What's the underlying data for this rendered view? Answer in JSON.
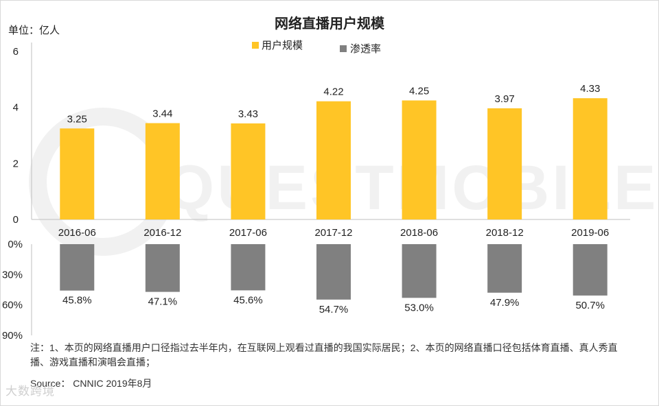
{
  "header": {
    "title": "网络直播用户规模",
    "unit": "单位：亿人"
  },
  "legend": {
    "users_label": "用户规模",
    "rate_label": "渗透率"
  },
  "footer": {
    "note": "注：1、本页的网络直播用户口径指过去半年内，在互联网上观看过直播的我国实际居民；2、本页的网络直播口径包括体育直播、真人秀直播、游戏直播和演唱会直播；",
    "source": "Source： CNNIC 2019年8月"
  },
  "watermark": {
    "text": "QUESTMOBILE",
    "bottom_logo": "大数跨境"
  },
  "colors": {
    "bar_users": "#FFC526",
    "bar_rate": "#808080",
    "axis": "#bfbfbf",
    "watermark": "#f0f0f0"
  },
  "chart_data": [
    {
      "type": "bar",
      "title": "网络直播用户规模",
      "ylabel": "单位：亿人",
      "categories": [
        "2016-06",
        "2016-12",
        "2017-06",
        "2017-12",
        "2018-06",
        "2018-12",
        "2019-06"
      ],
      "series": [
        {
          "name": "用户规模",
          "values": [
            3.25,
            3.44,
            3.43,
            4.22,
            4.25,
            3.97,
            4.33
          ]
        }
      ],
      "value_labels": [
        "3.25",
        "3.44",
        "3.43",
        "4.22",
        "4.25",
        "3.97",
        "4.33"
      ],
      "yticks": [
        "0",
        "2",
        "4",
        "6"
      ],
      "ylim": [
        0,
        6
      ],
      "grid": false,
      "legend": "top-center"
    },
    {
      "type": "bar",
      "categories": [
        "2016-06",
        "2016-12",
        "2017-06",
        "2017-12",
        "2018-06",
        "2018-12",
        "2019-06"
      ],
      "series": [
        {
          "name": "渗透率",
          "values": [
            45.8,
            47.1,
            45.6,
            54.7,
            53.0,
            47.9,
            50.7
          ]
        }
      ],
      "value_labels": [
        "45.8%",
        "47.1%",
        "45.6%",
        "54.7%",
        "53.0%",
        "47.9%",
        "50.7%"
      ],
      "yticks": [
        "0%",
        "30%",
        "60%",
        "90%"
      ],
      "ylim": [
        0,
        90
      ],
      "orientation": "downward",
      "grid": false
    }
  ]
}
